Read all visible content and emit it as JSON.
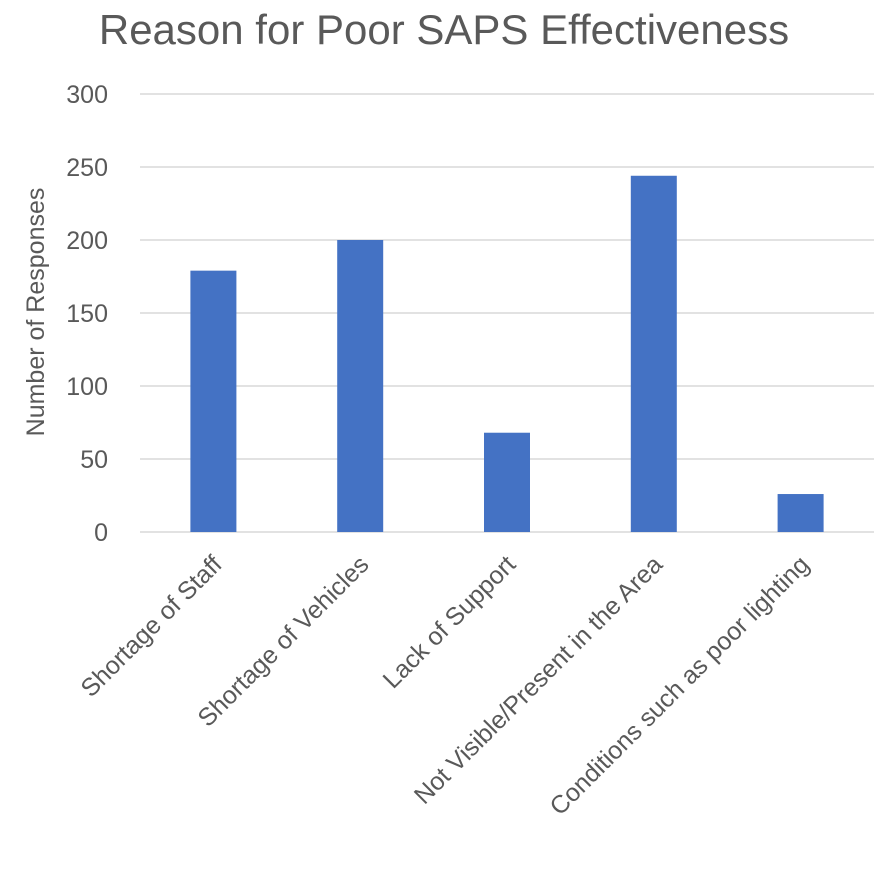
{
  "chart_data": {
    "type": "bar",
    "title": "Reason for Poor SAPS Effectiveness",
    "xlabel": "",
    "ylabel": "Number of Responses",
    "categories": [
      "Shortage of Staff",
      "Shortage of Vehicles",
      "Lack of Support",
      "Not Visible/Present in the Area",
      "Conditions such as poor lighting"
    ],
    "values": [
      179,
      200,
      68,
      244,
      26
    ],
    "ylim": [
      0,
      300
    ],
    "yticks": [
      0,
      50,
      100,
      150,
      200,
      250,
      300
    ],
    "grid": true,
    "legend": "none",
    "bar_color": "#4472C4"
  }
}
